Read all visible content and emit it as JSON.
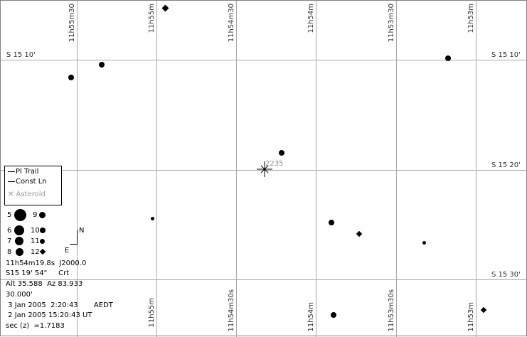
{
  "map": {
    "ra_labels_top": [
      "11h55m30",
      "11h55m",
      "11h54m30",
      "11h54m",
      "11h53m30",
      "11h53m"
    ],
    "ra_labels_bottom": [
      "11h55m",
      "11h54m30s",
      "11h54m",
      "11h53m30s",
      "11h53m"
    ],
    "dec_labels": [
      "S 15 10'",
      "S 15 20'",
      "S 15 30'"
    ],
    "target_label": "2235"
  },
  "legend": {
    "pl_trail": "Pl Trail",
    "const_ln": "Const Ln",
    "asteroid": "Asteroid"
  },
  "magnitudes": [
    "5",
    "9",
    "6",
    "10",
    "7",
    "11",
    "8",
    "12"
  ],
  "orientation": {
    "north": "N",
    "east": "E"
  },
  "info": {
    "ra": "11h54m19.8s  J2000.0",
    "dec": "S15 19' 54\"     Crt",
    "altaz": "Alt 35.588  Az 83.933",
    "fov": "30.000'",
    "local_time": " 3 Jan 2005  2:20:43       AEDT",
    "ut_time": " 2 Jan 2005 15:20:43 UT",
    "airmass": "sec (z)  =1.7183"
  },
  "colors": {
    "grid": "#a8a8a8",
    "star": "#000000",
    "text": "#303030"
  }
}
